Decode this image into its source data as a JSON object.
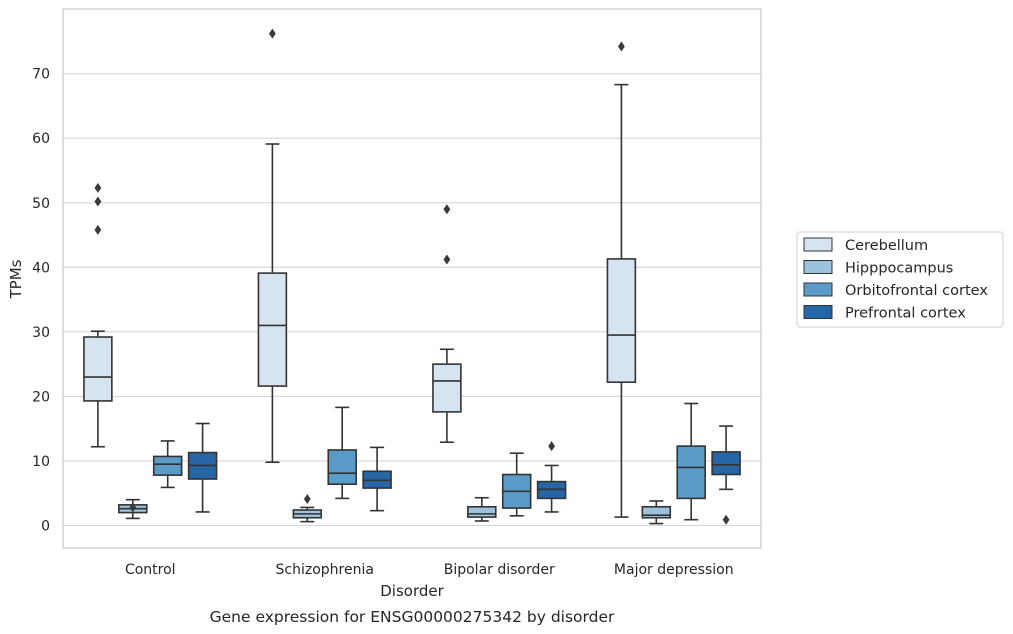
{
  "caption": "Gene expression for ENSG00000275342 by disorder",
  "chart_data": {
    "type": "box",
    "title": "",
    "xlabel": "Disorder",
    "ylabel": "TPMs",
    "ylim": [
      -3.5,
      80
    ],
    "yticks": [
      0,
      10,
      20,
      30,
      40,
      50,
      60,
      70
    ],
    "grid": "horizontal",
    "legend_position": "right",
    "categories": [
      "Control",
      "Schizophrenia",
      "Bipolar disorder",
      "Major depression"
    ],
    "series": [
      {
        "name": "Cerebellum",
        "color": "#d6e4f2",
        "boxes": [
          {
            "whislo": 12.2,
            "q1": 19.3,
            "med": 23.0,
            "q3": 29.2,
            "whishi": 30.1,
            "fliers": [
              45.8,
              50.2,
              52.3
            ]
          },
          {
            "whislo": 9.8,
            "q1": 21.6,
            "med": 31.0,
            "q3": 39.1,
            "whishi": 59.1,
            "fliers": [
              76.2
            ]
          },
          {
            "whislo": 12.9,
            "q1": 17.6,
            "med": 22.4,
            "q3": 25.0,
            "whishi": 27.3,
            "fliers": [
              41.2,
              49.0
            ]
          },
          {
            "whislo": 1.3,
            "q1": 22.2,
            "med": 29.5,
            "q3": 41.3,
            "whishi": 68.3,
            "fliers": [
              74.2
            ]
          }
        ]
      },
      {
        "name": "Hipppocampus",
        "color": "#9bc3dd",
        "boxes": [
          {
            "whislo": 1.1,
            "q1": 2.0,
            "med": 2.6,
            "q3": 3.2,
            "whishi": 4.0,
            "fliers": [
              2.8
            ]
          },
          {
            "whislo": 0.6,
            "q1": 1.2,
            "med": 1.8,
            "q3": 2.4,
            "whishi": 2.8,
            "fliers": [
              4.1
            ]
          },
          {
            "whislo": 0.7,
            "q1": 1.3,
            "med": 1.8,
            "q3": 2.9,
            "whishi": 4.3,
            "fliers": []
          },
          {
            "whislo": 0.3,
            "q1": 1.2,
            "med": 1.6,
            "q3": 2.9,
            "whishi": 3.8,
            "fliers": []
          }
        ]
      },
      {
        "name": "Orbitofrontal cortex",
        "color": "#5a9bc8",
        "boxes": [
          {
            "whislo": 5.9,
            "q1": 7.8,
            "med": 9.5,
            "q3": 10.7,
            "whishi": 13.1,
            "fliers": []
          },
          {
            "whislo": 4.2,
            "q1": 6.4,
            "med": 8.1,
            "q3": 11.7,
            "whishi": 18.3,
            "fliers": []
          },
          {
            "whislo": 1.5,
            "q1": 2.7,
            "med": 5.3,
            "q3": 7.9,
            "whishi": 11.2,
            "fliers": []
          },
          {
            "whislo": 0.9,
            "q1": 4.2,
            "med": 9.0,
            "q3": 12.3,
            "whishi": 18.9,
            "fliers": []
          }
        ]
      },
      {
        "name": "Prefrontal cortex",
        "color": "#2766a6",
        "boxes": [
          {
            "whislo": 2.1,
            "q1": 7.2,
            "med": 9.3,
            "q3": 11.3,
            "whishi": 15.8,
            "fliers": []
          },
          {
            "whislo": 2.3,
            "q1": 5.8,
            "med": 7.0,
            "q3": 8.4,
            "whishi": 12.1,
            "fliers": []
          },
          {
            "whislo": 2.1,
            "q1": 4.2,
            "med": 5.6,
            "q3": 6.8,
            "whishi": 9.3,
            "fliers": [
              12.3
            ]
          },
          {
            "whislo": 5.6,
            "q1": 7.9,
            "med": 9.4,
            "q3": 11.4,
            "whishi": 15.4,
            "fliers": [
              0.9
            ]
          }
        ]
      }
    ]
  }
}
